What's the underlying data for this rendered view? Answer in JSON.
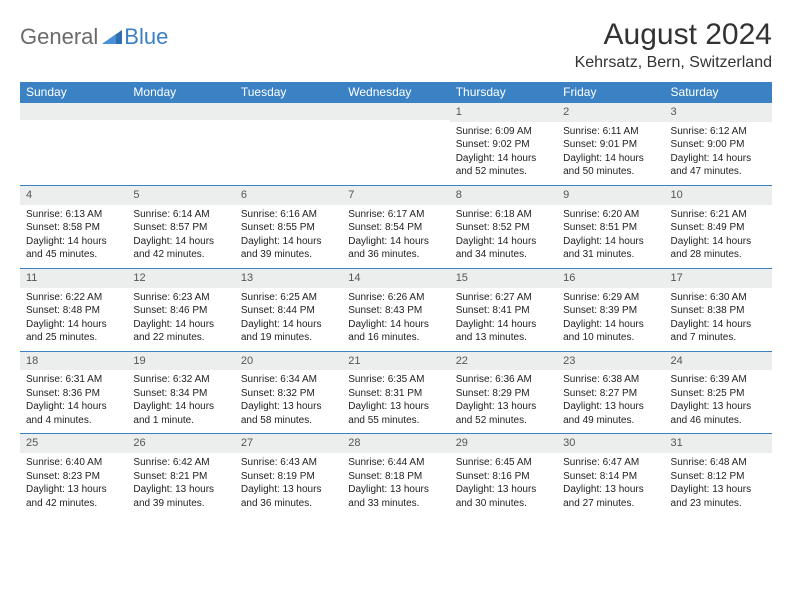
{
  "logo": {
    "general": "General",
    "blue": "Blue"
  },
  "title": "August 2024",
  "location": "Kehrsatz, Bern, Switzerland",
  "weekdays": [
    "Sunday",
    "Monday",
    "Tuesday",
    "Wednesday",
    "Thursday",
    "Friday",
    "Saturday"
  ],
  "colors": {
    "header_bg": "#3b82c4",
    "daynum_bg": "#eceded",
    "border": "#3b82c4"
  },
  "weeks": [
    [
      null,
      null,
      null,
      null,
      {
        "n": "1",
        "sr": "Sunrise: 6:09 AM",
        "ss": "Sunset: 9:02 PM",
        "dl": "Daylight: 14 hours and 52 minutes."
      },
      {
        "n": "2",
        "sr": "Sunrise: 6:11 AM",
        "ss": "Sunset: 9:01 PM",
        "dl": "Daylight: 14 hours and 50 minutes."
      },
      {
        "n": "3",
        "sr": "Sunrise: 6:12 AM",
        "ss": "Sunset: 9:00 PM",
        "dl": "Daylight: 14 hours and 47 minutes."
      }
    ],
    [
      {
        "n": "4",
        "sr": "Sunrise: 6:13 AM",
        "ss": "Sunset: 8:58 PM",
        "dl": "Daylight: 14 hours and 45 minutes."
      },
      {
        "n": "5",
        "sr": "Sunrise: 6:14 AM",
        "ss": "Sunset: 8:57 PM",
        "dl": "Daylight: 14 hours and 42 minutes."
      },
      {
        "n": "6",
        "sr": "Sunrise: 6:16 AM",
        "ss": "Sunset: 8:55 PM",
        "dl": "Daylight: 14 hours and 39 minutes."
      },
      {
        "n": "7",
        "sr": "Sunrise: 6:17 AM",
        "ss": "Sunset: 8:54 PM",
        "dl": "Daylight: 14 hours and 36 minutes."
      },
      {
        "n": "8",
        "sr": "Sunrise: 6:18 AM",
        "ss": "Sunset: 8:52 PM",
        "dl": "Daylight: 14 hours and 34 minutes."
      },
      {
        "n": "9",
        "sr": "Sunrise: 6:20 AM",
        "ss": "Sunset: 8:51 PM",
        "dl": "Daylight: 14 hours and 31 minutes."
      },
      {
        "n": "10",
        "sr": "Sunrise: 6:21 AM",
        "ss": "Sunset: 8:49 PM",
        "dl": "Daylight: 14 hours and 28 minutes."
      }
    ],
    [
      {
        "n": "11",
        "sr": "Sunrise: 6:22 AM",
        "ss": "Sunset: 8:48 PM",
        "dl": "Daylight: 14 hours and 25 minutes."
      },
      {
        "n": "12",
        "sr": "Sunrise: 6:23 AM",
        "ss": "Sunset: 8:46 PM",
        "dl": "Daylight: 14 hours and 22 minutes."
      },
      {
        "n": "13",
        "sr": "Sunrise: 6:25 AM",
        "ss": "Sunset: 8:44 PM",
        "dl": "Daylight: 14 hours and 19 minutes."
      },
      {
        "n": "14",
        "sr": "Sunrise: 6:26 AM",
        "ss": "Sunset: 8:43 PM",
        "dl": "Daylight: 14 hours and 16 minutes."
      },
      {
        "n": "15",
        "sr": "Sunrise: 6:27 AM",
        "ss": "Sunset: 8:41 PM",
        "dl": "Daylight: 14 hours and 13 minutes."
      },
      {
        "n": "16",
        "sr": "Sunrise: 6:29 AM",
        "ss": "Sunset: 8:39 PM",
        "dl": "Daylight: 14 hours and 10 minutes."
      },
      {
        "n": "17",
        "sr": "Sunrise: 6:30 AM",
        "ss": "Sunset: 8:38 PM",
        "dl": "Daylight: 14 hours and 7 minutes."
      }
    ],
    [
      {
        "n": "18",
        "sr": "Sunrise: 6:31 AM",
        "ss": "Sunset: 8:36 PM",
        "dl": "Daylight: 14 hours and 4 minutes."
      },
      {
        "n": "19",
        "sr": "Sunrise: 6:32 AM",
        "ss": "Sunset: 8:34 PM",
        "dl": "Daylight: 14 hours and 1 minute."
      },
      {
        "n": "20",
        "sr": "Sunrise: 6:34 AM",
        "ss": "Sunset: 8:32 PM",
        "dl": "Daylight: 13 hours and 58 minutes."
      },
      {
        "n": "21",
        "sr": "Sunrise: 6:35 AM",
        "ss": "Sunset: 8:31 PM",
        "dl": "Daylight: 13 hours and 55 minutes."
      },
      {
        "n": "22",
        "sr": "Sunrise: 6:36 AM",
        "ss": "Sunset: 8:29 PM",
        "dl": "Daylight: 13 hours and 52 minutes."
      },
      {
        "n": "23",
        "sr": "Sunrise: 6:38 AM",
        "ss": "Sunset: 8:27 PM",
        "dl": "Daylight: 13 hours and 49 minutes."
      },
      {
        "n": "24",
        "sr": "Sunrise: 6:39 AM",
        "ss": "Sunset: 8:25 PM",
        "dl": "Daylight: 13 hours and 46 minutes."
      }
    ],
    [
      {
        "n": "25",
        "sr": "Sunrise: 6:40 AM",
        "ss": "Sunset: 8:23 PM",
        "dl": "Daylight: 13 hours and 42 minutes."
      },
      {
        "n": "26",
        "sr": "Sunrise: 6:42 AM",
        "ss": "Sunset: 8:21 PM",
        "dl": "Daylight: 13 hours and 39 minutes."
      },
      {
        "n": "27",
        "sr": "Sunrise: 6:43 AM",
        "ss": "Sunset: 8:19 PM",
        "dl": "Daylight: 13 hours and 36 minutes."
      },
      {
        "n": "28",
        "sr": "Sunrise: 6:44 AM",
        "ss": "Sunset: 8:18 PM",
        "dl": "Daylight: 13 hours and 33 minutes."
      },
      {
        "n": "29",
        "sr": "Sunrise: 6:45 AM",
        "ss": "Sunset: 8:16 PM",
        "dl": "Daylight: 13 hours and 30 minutes."
      },
      {
        "n": "30",
        "sr": "Sunrise: 6:47 AM",
        "ss": "Sunset: 8:14 PM",
        "dl": "Daylight: 13 hours and 27 minutes."
      },
      {
        "n": "31",
        "sr": "Sunrise: 6:48 AM",
        "ss": "Sunset: 8:12 PM",
        "dl": "Daylight: 13 hours and 23 minutes."
      }
    ]
  ]
}
